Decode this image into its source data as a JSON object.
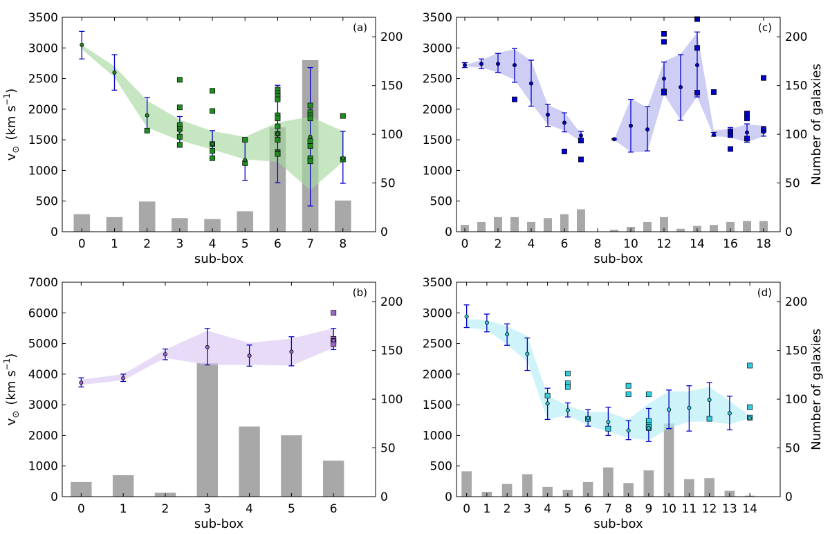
{
  "chart_data": [
    {
      "type": "bar+line",
      "panel_label": "(a)",
      "xlabel": "sub-box",
      "ylabel": "v",
      "ylabel_sub": "⊙",
      "ylabel_units": "(km s",
      "ylabel_units_sup": "−1",
      "ylabel_units_end": ")",
      "y2label": "",
      "colors": {
        "band": "#a8d8a0",
        "marker": "#1e8c1e",
        "errorbar": "#0000cc",
        "bar": "#a8a8a8"
      },
      "xlim": [
        -0.6,
        9.0
      ],
      "ylim": [
        0,
        3500
      ],
      "y2lim": [
        0,
        220
      ],
      "xticks": [
        0,
        1,
        2,
        3,
        4,
        5,
        6,
        7,
        8
      ],
      "yticks": [
        0,
        500,
        1000,
        1500,
        2000,
        2500,
        3000,
        3500
      ],
      "y2ticks": [
        0,
        50,
        100,
        150,
        200
      ],
      "bars": {
        "x": [
          0,
          1,
          2,
          3,
          4,
          5,
          6,
          7,
          8
        ],
        "values": [
          18,
          15,
          31,
          14,
          13,
          21,
          107,
          176,
          32
        ]
      },
      "band": {
        "x": [
          0,
          1,
          2,
          3,
          4,
          5,
          6,
          7,
          8
        ],
        "upper": [
          3050,
          2700,
          2140,
          1830,
          1640,
          1550,
          1780,
          1880,
          1640
        ],
        "lower": [
          2980,
          2520,
          1700,
          1490,
          1340,
          1180,
          1140,
          680,
          1140
        ]
      },
      "means": {
        "x": [
          0,
          1,
          2,
          3,
          4,
          5,
          6,
          7,
          8
        ],
        "values": [
          3050,
          2600,
          1900,
          1650,
          1430,
          1170,
          1600,
          1550,
          1200
        ],
        "err_low": [
          2820,
          2310,
          1640,
          1380,
          1200,
          840,
          800,
          420,
          790
        ],
        "err_high": [
          3270,
          2890,
          2190,
          1880,
          1650,
          1500,
          2390,
          2680,
          1640
        ]
      },
      "galaxies": {
        "x": [
          2,
          3,
          3,
          3,
          3,
          3,
          3,
          4,
          4,
          4,
          4,
          4,
          5,
          5,
          6,
          6,
          6,
          6,
          6,
          6,
          6,
          6,
          6,
          6,
          6,
          6,
          7,
          7,
          7,
          7,
          7,
          7,
          7,
          7,
          8,
          8
        ],
        "v": [
          1650,
          2480,
          2030,
          1740,
          1680,
          1550,
          1420,
          2300,
          1970,
          1430,
          1320,
          1200,
          1500,
          1120,
          2320,
          2260,
          2210,
          2160,
          1900,
          1850,
          1720,
          1600,
          1500,
          1300,
          1280,
          1270,
          2060,
          1950,
          1900,
          1850,
          1480,
          1400,
          1200,
          1150,
          1890,
          1180
        ]
      }
    },
    {
      "type": "bar+line",
      "panel_label": "(b)",
      "xlabel": "sub-box",
      "ylabel": "v",
      "ylabel_sub": "⊙",
      "ylabel_units": "(km s",
      "ylabel_units_sup": "−1",
      "ylabel_units_end": ")",
      "y2label": "",
      "colors": {
        "band": "#dcc8f4",
        "marker": "#9966cc",
        "errorbar": "#0000cc",
        "bar": "#a8a8a8"
      },
      "xlim": [
        -0.45,
        7.0
      ],
      "ylim": [
        0,
        7000
      ],
      "y2lim": [
        0,
        220
      ],
      "xticks": [
        0,
        1,
        2,
        3,
        4,
        5,
        6
      ],
      "yticks": [
        0,
        1000,
        2000,
        3000,
        4000,
        5000,
        6000,
        7000
      ],
      "y2ticks": [
        0,
        50,
        100,
        150,
        200
      ],
      "bars": {
        "x": [
          0,
          1,
          2,
          3,
          4,
          5,
          6
        ],
        "values": [
          15,
          22,
          4,
          137,
          72,
          63,
          37
        ]
      },
      "band": {
        "x": [
          0,
          1,
          2,
          3,
          4,
          5,
          6
        ],
        "upper": [
          3820,
          4000,
          4800,
          5420,
          5020,
          5160,
          5500
        ],
        "lower": [
          3650,
          3800,
          4530,
          4300,
          4300,
          4280,
          4860
        ]
      },
      "means": {
        "x": [
          0,
          1,
          2,
          3,
          4,
          5,
          6
        ],
        "values": [
          3720,
          3870,
          4650,
          4880,
          4600,
          4730,
          5100
        ],
        "err_low": [
          3580,
          3760,
          4470,
          4300,
          4260,
          4270,
          4800
        ],
        "err_high": [
          3880,
          4000,
          4820,
          5490,
          4950,
          5220,
          5490
        ]
      },
      "galaxies": {
        "x": [
          6,
          6,
          6,
          6
        ],
        "v": [
          6000,
          5150,
          5080,
          4980
        ]
      }
    },
    {
      "type": "bar+line",
      "panel_label": "(c)",
      "xlabel": "sub-box",
      "ylabel": "",
      "y2label": "Number of galaxies",
      "colors": {
        "band": "#b4b4f0",
        "marker": "#0000cc",
        "errorbar": "#0000cc",
        "bar": "#a8a8a8"
      },
      "xlim": [
        -0.5,
        19.0
      ],
      "ylim": [
        0,
        3500
      ],
      "y2lim": [
        0,
        220
      ],
      "xticks": [
        0,
        2,
        4,
        6,
        8,
        10,
        12,
        14,
        16,
        18
      ],
      "yticks": [
        0,
        500,
        1000,
        1500,
        2000,
        2500,
        3000,
        3500
      ],
      "y2ticks": [
        0,
        50,
        100,
        150,
        200
      ],
      "bars": {
        "x": [
          0,
          1,
          2,
          3,
          4,
          5,
          6,
          7,
          9,
          10,
          11,
          12,
          13,
          14,
          15,
          16,
          17,
          18
        ],
        "values": [
          7,
          10,
          15,
          15,
          10,
          14,
          18,
          23,
          2,
          5,
          10,
          15,
          3,
          6,
          7,
          10,
          11,
          11
        ]
      },
      "band_segments": [
        {
          "x": [
            0,
            1,
            2,
            3,
            4,
            5,
            6,
            7
          ],
          "upper": [
            2720,
            2800,
            2920,
            2980,
            2790,
            2070,
            1950,
            1600
          ],
          "lower": [
            2700,
            2680,
            2600,
            2480,
            2100,
            1750,
            1650,
            1470
          ]
        },
        {
          "x": [
            9,
            10,
            11,
            12,
            13,
            14,
            15,
            16,
            17,
            18
          ],
          "upper": [
            1510,
            2170,
            2030,
            2780,
            2900,
            3250,
            1650,
            1680,
            1750,
            1730
          ],
          "lower": [
            1500,
            1300,
            1300,
            2240,
            1820,
            2200,
            1560,
            1540,
            1460,
            1560
          ]
        }
      ],
      "means": {
        "x": [
          0,
          1,
          2,
          3,
          4,
          5,
          6,
          7,
          9,
          10,
          11,
          12,
          13,
          14,
          15,
          16,
          17,
          18
        ],
        "values": [
          2720,
          2740,
          2740,
          2720,
          2420,
          1910,
          1780,
          1570,
          1510,
          1730,
          1670,
          2500,
          2360,
          2720,
          1580,
          1620,
          1620,
          1630
        ],
        "err_low": [
          2680,
          2660,
          2600,
          2440,
          2050,
          1720,
          1630,
          1450,
          1500,
          1300,
          1320,
          2240,
          1820,
          2200,
          1560,
          1540,
          1460,
          1560
        ],
        "err_high": [
          2760,
          2820,
          2910,
          2990,
          2800,
          2080,
          1940,
          1640,
          1520,
          2160,
          2040,
          2770,
          2890,
          3260,
          1620,
          1700,
          1760,
          1720
        ]
      },
      "galaxies": {
        "x": [
          3,
          6,
          7,
          7,
          12,
          12,
          12,
          12,
          14,
          14,
          14,
          15,
          16,
          16,
          16,
          17,
          17,
          17,
          18,
          18
        ],
        "v": [
          2160,
          1310,
          1490,
          1180,
          3230,
          3100,
          2290,
          2270,
          3470,
          3000,
          2270,
          2280,
          1580,
          1640,
          1350,
          1850,
          1520,
          1930,
          2510,
          1660
        ]
      }
    },
    {
      "type": "bar+line",
      "panel_label": "(d)",
      "xlabel": "sub-box",
      "ylabel": "",
      "y2label": "Number of galaxies",
      "colors": {
        "band": "#b4ecf4",
        "marker": "#33ccdd",
        "errorbar": "#0000cc",
        "bar": "#a8a8a8"
      },
      "xlim": [
        -0.5,
        15.5
      ],
      "ylim": [
        0,
        3500
      ],
      "y2lim": [
        0,
        220
      ],
      "xticks": [
        0,
        1,
        2,
        3,
        4,
        5,
        6,
        7,
        8,
        9,
        10,
        11,
        12,
        13,
        14
      ],
      "yticks": [
        0,
        500,
        1000,
        1500,
        2000,
        2500,
        3000,
        3500
      ],
      "y2ticks": [
        0,
        50,
        100,
        150,
        200
      ],
      "bars": {
        "x": [
          0,
          1,
          2,
          3,
          4,
          5,
          6,
          7,
          8,
          9,
          10,
          11,
          12,
          13,
          14
        ],
        "values": [
          26,
          5,
          13,
          23,
          10,
          7,
          15,
          30,
          14,
          27,
          75,
          18,
          19,
          6,
          1
        ]
      },
      "band": {
        "x": [
          0,
          1,
          2,
          3,
          4,
          5,
          6,
          7,
          8,
          9,
          10,
          11,
          12,
          13,
          14
        ],
        "upper": [
          2900,
          2880,
          2780,
          2620,
          1650,
          1480,
          1380,
          1380,
          1260,
          1520,
          1720,
          1720,
          1790,
          1560,
          1320
        ],
        "lower": [
          2760,
          2720,
          2480,
          2200,
          1260,
          1330,
          1160,
          1060,
          960,
          920,
          1120,
          1220,
          1230,
          1180,
          1280
        ]
      },
      "means": {
        "x": [
          0,
          1,
          2,
          3,
          4,
          5,
          6,
          7,
          8,
          9,
          10,
          11,
          12,
          13,
          14
        ],
        "values": [
          2940,
          2840,
          2650,
          2330,
          1520,
          1410,
          1280,
          1220,
          1080,
          1120,
          1420,
          1450,
          1580,
          1360,
          1280
        ],
        "err_low": [
          2760,
          2690,
          2470,
          2060,
          1260,
          1300,
          1150,
          1000,
          930,
          900,
          1110,
          1070,
          1300,
          1090,
          1270
        ],
        "err_high": [
          3130,
          2980,
          2820,
          2590,
          1770,
          1530,
          1420,
          1460,
          1240,
          1440,
          1740,
          1810,
          1860,
          1640,
          1300
        ]
      },
      "galaxies": {
        "x": [
          4,
          5,
          5,
          5,
          6,
          7,
          8,
          8,
          9,
          9,
          9,
          9,
          9,
          12,
          14,
          14,
          14
        ],
        "v": [
          1650,
          2010,
          1850,
          1790,
          1270,
          1110,
          1810,
          1670,
          1670,
          1240,
          1170,
          1120,
          1140,
          1270,
          2140,
          1460,
          1290
        ]
      }
    }
  ]
}
